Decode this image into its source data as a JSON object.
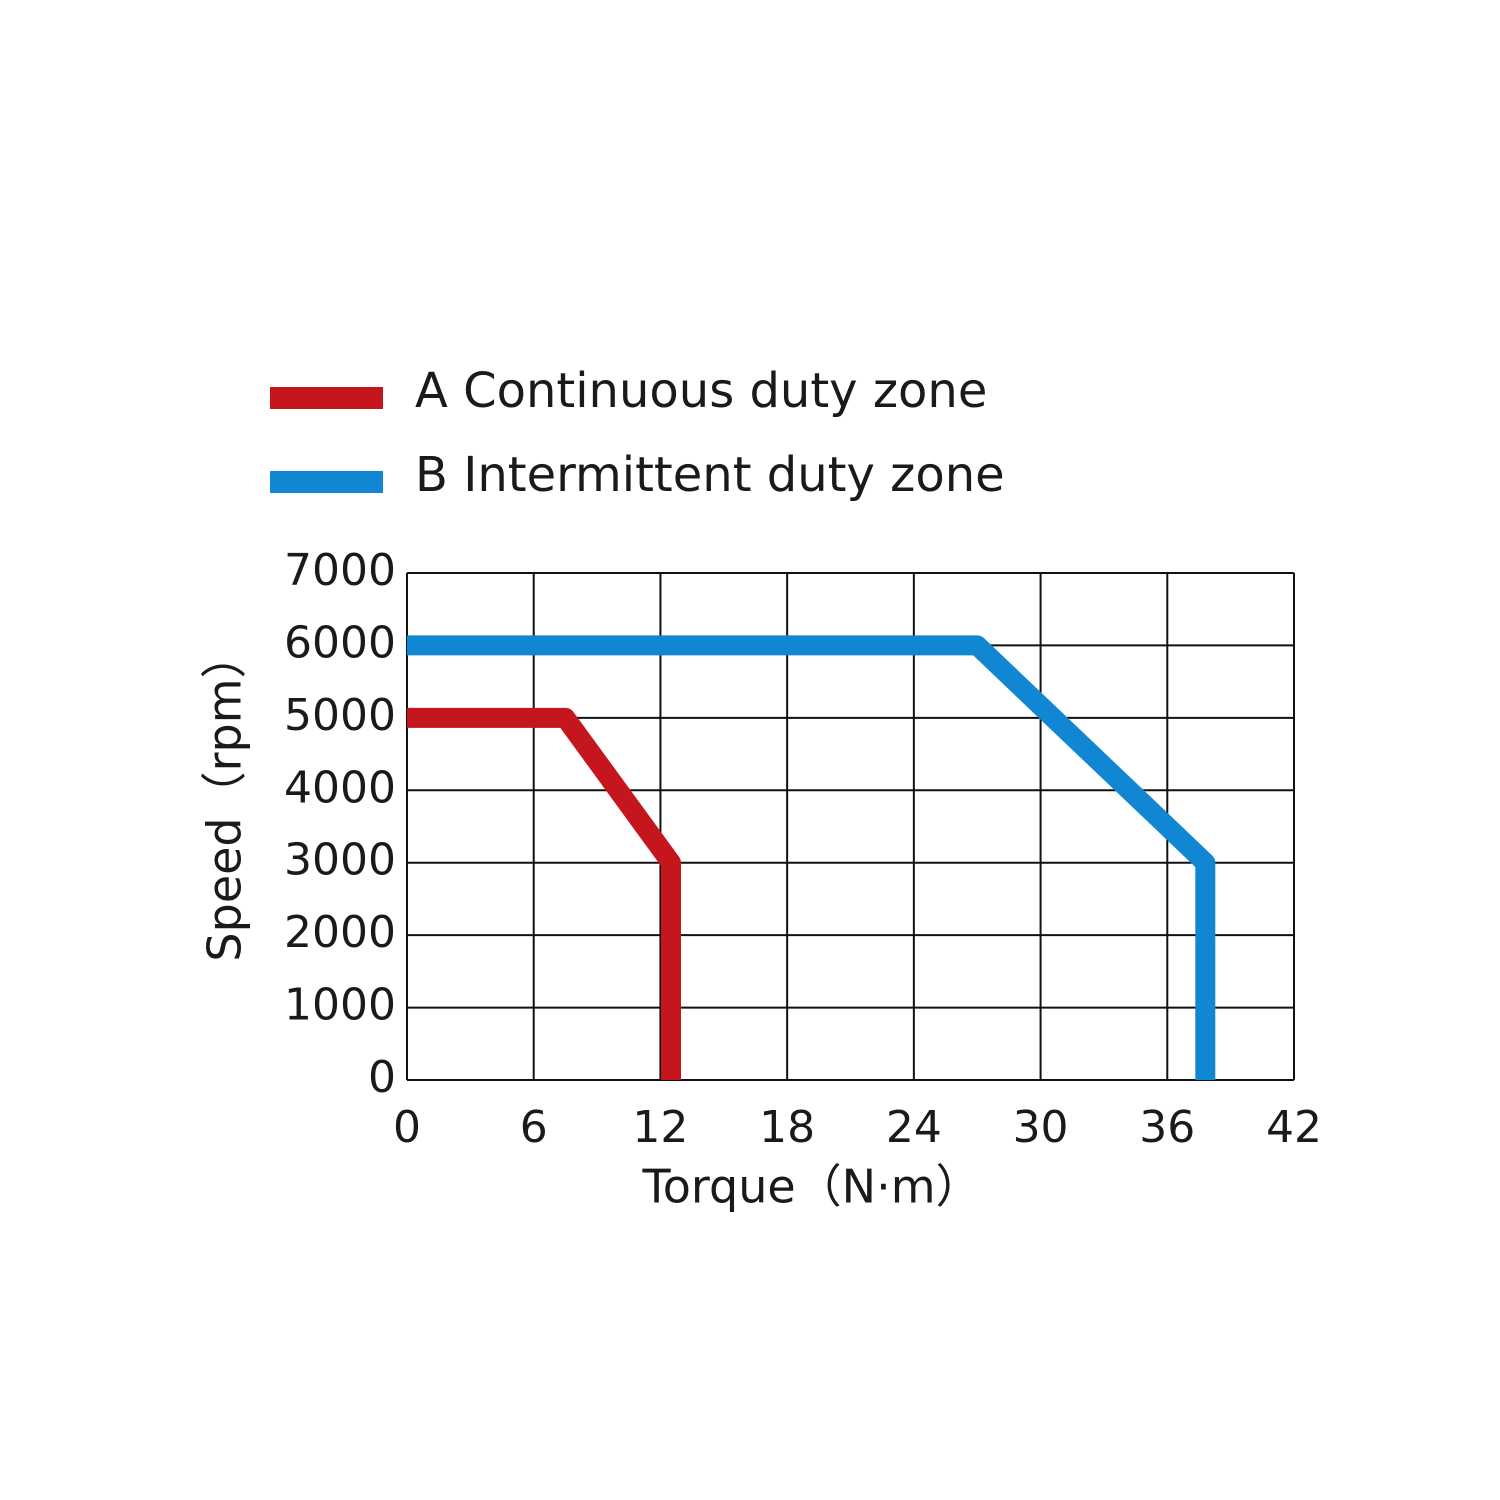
{
  "chart_data": {
    "type": "line",
    "xlabel": "Torque（N·m）",
    "ylabel": "Speed（rpm）",
    "xlim": [
      0,
      42
    ],
    "xticks": [
      0,
      6,
      12,
      18,
      24,
      30,
      36,
      42
    ],
    "ylim": [
      0,
      7000
    ],
    "yticks": [
      0,
      1000,
      2000,
      3000,
      4000,
      5000,
      6000,
      7000
    ],
    "grid": true,
    "series": [
      {
        "name": "A Continuous duty zone",
        "color": "#c4161c",
        "x": [
          0,
          7.5,
          12.5,
          12.5
        ],
        "values": [
          5000,
          5000,
          3000,
          0
        ]
      },
      {
        "name": "B Intermittent duty zone",
        "color": "#1187d4",
        "x": [
          0,
          27,
          37.8,
          37.8
        ],
        "values": [
          6000,
          6000,
          3000,
          0
        ]
      }
    ]
  }
}
